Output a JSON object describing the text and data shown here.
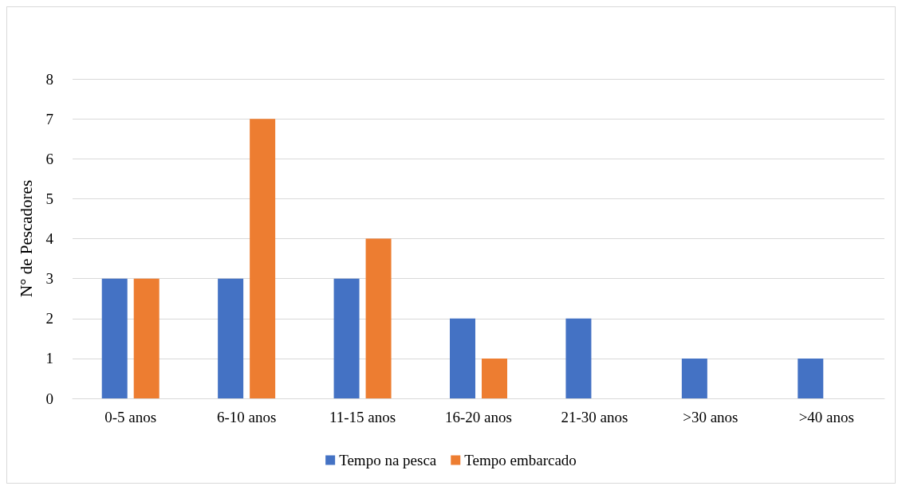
{
  "chart_data": {
    "type": "bar",
    "ylabel": "N° de Pescadores",
    "categories": [
      "0-5 anos",
      "6-10 anos",
      "11-15 anos",
      "16-20 anos",
      "21-30 anos",
      ">30 anos",
      ">40 anos"
    ],
    "series": [
      {
        "name": "Tempo na pesca",
        "color": "#4472c4",
        "values": [
          3,
          3,
          3,
          2,
          2,
          1,
          1
        ]
      },
      {
        "name": "Tempo embarcado",
        "color": "#ed7d31",
        "values": [
          3,
          7,
          4,
          1,
          0,
          0,
          0
        ]
      }
    ],
    "ylim": [
      0,
      8
    ],
    "yticks": [
      0,
      1,
      2,
      3,
      4,
      5,
      6,
      7,
      8
    ],
    "grid": "y",
    "legend": "bottom"
  }
}
